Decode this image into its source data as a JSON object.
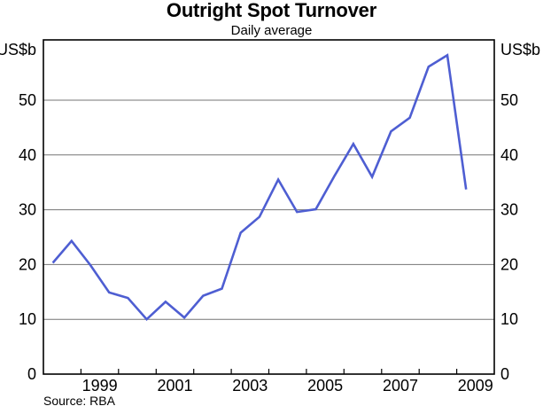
{
  "chart_data": {
    "type": "line",
    "title": "Outright Spot Turnover",
    "subtitle": "Daily average",
    "source": "Source: RBA",
    "grid": true,
    "legend_position": "none",
    "y_axis": {
      "unit": "US$b",
      "unit_shown_both_sides": true,
      "ticks": [
        0,
        10,
        20,
        30,
        40,
        50
      ],
      "ylim": [
        0,
        61
      ],
      "labels_both_sides": true
    },
    "x_axis": {
      "xlim": [
        1998,
        2010
      ],
      "tick_years": [
        1999,
        2000,
        2001,
        2002,
        2003,
        2004,
        2005,
        2006,
        2007,
        2008,
        2009
      ],
      "labels": [
        "1999",
        "2001",
        "2003",
        "2005",
        "2007",
        "2009"
      ]
    },
    "series": [
      {
        "name": "Outright spot turnover (daily average)",
        "color": "#4e5ed2",
        "frequency": "semiannual",
        "periods": [
          "1998 H1",
          "1998 H2",
          "1999 H1",
          "1999 H2",
          "2000 H1",
          "2000 H2",
          "2001 H1",
          "2001 H2",
          "2002 H1",
          "2002 H2",
          "2003 H1",
          "2003 H2",
          "2004 H1",
          "2004 H2",
          "2005 H1",
          "2005 H2",
          "2006 H1",
          "2006 H2",
          "2007 H1",
          "2007 H2",
          "2008 H1",
          "2008 H2",
          "2009 H1"
        ],
        "x": [
          1998.25,
          1998.75,
          1999.25,
          1999.75,
          2000.25,
          2000.75,
          2001.25,
          2001.75,
          2002.25,
          2002.75,
          2003.25,
          2003.75,
          2004.25,
          2004.75,
          2005.25,
          2005.75,
          2006.25,
          2006.75,
          2007.25,
          2007.75,
          2008.25,
          2008.75,
          2009.25
        ],
        "values": [
          20.3,
          24.3,
          19.9,
          14.9,
          13.9,
          10.0,
          13.2,
          10.3,
          14.3,
          15.6,
          25.8,
          28.7,
          35.5,
          29.6,
          30.1,
          36.2,
          42.0,
          36.0,
          44.3,
          46.8,
          56.1,
          58.2,
          33.7
        ]
      }
    ],
    "style": {
      "line_color": "#4e5ed2",
      "gridline_color": "#757575",
      "frame_color": "#000000",
      "background": "#ffffff"
    }
  }
}
